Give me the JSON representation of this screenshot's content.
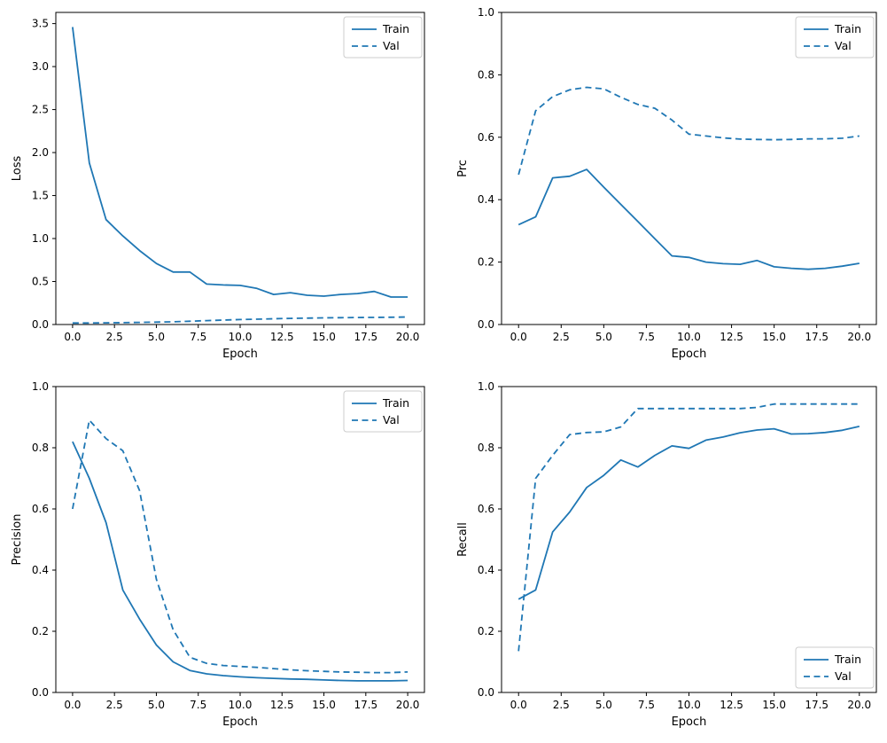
{
  "figure": {
    "background": "#ffffff",
    "accent_color": "#1f77b4",
    "text_color": "#000000",
    "legend_border_color": "#cccccc"
  },
  "chart_data": [
    {
      "type": "line",
      "name": "loss",
      "title": "",
      "xlabel": "Epoch",
      "ylabel": "Loss",
      "xlim": [
        -1,
        21
      ],
      "ylim": [
        0,
        3.63
      ],
      "grid": false,
      "xticks": [
        0,
        2.5,
        5,
        7.5,
        10,
        12.5,
        15,
        17.5,
        20
      ],
      "xtick_labels": [
        "0.0",
        "2.5",
        "5.0",
        "7.5",
        "10.0",
        "12.5",
        "15.0",
        "17.5",
        "20.0"
      ],
      "yticks": [
        0,
        0.5,
        1.0,
        1.5,
        2.0,
        2.5,
        3.0,
        3.5
      ],
      "ytick_labels": [
        "0.0",
        "0.5",
        "1.0",
        "1.5",
        "2.0",
        "2.5",
        "3.0",
        "3.5"
      ],
      "legend": {
        "position": "upper-right",
        "entries": [
          "Train",
          "Val"
        ]
      },
      "x": [
        0,
        1,
        2,
        3,
        4,
        5,
        6,
        7,
        8,
        9,
        10,
        11,
        12,
        13,
        14,
        15,
        16,
        17,
        18,
        19,
        20
      ],
      "series": [
        {
          "name": "Train",
          "style": "solid",
          "color": "#1f77b4",
          "values": [
            3.46,
            1.88,
            1.22,
            1.03,
            0.86,
            0.71,
            0.61,
            0.61,
            0.47,
            0.46,
            0.455,
            0.42,
            0.35,
            0.37,
            0.34,
            0.33,
            0.35,
            0.36,
            0.385,
            0.32,
            0.32
          ]
        },
        {
          "name": "Val",
          "style": "dashed",
          "color": "#1f77b4",
          "values": [
            0.018,
            0.018,
            0.02,
            0.022,
            0.025,
            0.028,
            0.032,
            0.038,
            0.045,
            0.052,
            0.058,
            0.062,
            0.067,
            0.071,
            0.074,
            0.077,
            0.079,
            0.081,
            0.083,
            0.085,
            0.088
          ]
        }
      ]
    },
    {
      "type": "line",
      "name": "prc",
      "title": "",
      "xlabel": "Epoch",
      "ylabel": "Prc",
      "xlim": [
        -1,
        21
      ],
      "ylim": [
        0,
        1.0
      ],
      "grid": false,
      "xticks": [
        0,
        2.5,
        5,
        7.5,
        10,
        12.5,
        15,
        17.5,
        20
      ],
      "xtick_labels": [
        "0.0",
        "2.5",
        "5.0",
        "7.5",
        "10.0",
        "12.5",
        "15.0",
        "17.5",
        "20.0"
      ],
      "yticks": [
        0,
        0.2,
        0.4,
        0.6,
        0.8,
        1.0
      ],
      "ytick_labels": [
        "0.0",
        "0.2",
        "0.4",
        "0.6",
        "0.8",
        "1.0"
      ],
      "legend": {
        "position": "upper-right",
        "entries": [
          "Train",
          "Val"
        ]
      },
      "x": [
        0,
        1,
        2,
        3,
        4,
        5,
        6,
        7,
        8,
        9,
        10,
        11,
        12,
        13,
        14,
        15,
        16,
        17,
        18,
        19,
        20
      ],
      "series": [
        {
          "name": "Train",
          "style": "solid",
          "color": "#1f77b4",
          "values": [
            0.32,
            0.345,
            0.47,
            0.475,
            0.497,
            0.44,
            0.385,
            0.33,
            0.275,
            0.22,
            0.215,
            0.2,
            0.195,
            0.193,
            0.205,
            0.185,
            0.18,
            0.177,
            0.18,
            0.187,
            0.196
          ]
        },
        {
          "name": "Val",
          "style": "dashed",
          "color": "#1f77b4",
          "values": [
            0.48,
            0.685,
            0.73,
            0.752,
            0.76,
            0.755,
            0.728,
            0.705,
            0.693,
            0.655,
            0.61,
            0.604,
            0.598,
            0.594,
            0.593,
            0.592,
            0.593,
            0.595,
            0.595,
            0.597,
            0.604
          ]
        }
      ]
    },
    {
      "type": "line",
      "name": "precision",
      "title": "",
      "xlabel": "Epoch",
      "ylabel": "Precision",
      "xlim": [
        -1,
        21
      ],
      "ylim": [
        0,
        1.0
      ],
      "grid": false,
      "xticks": [
        0,
        2.5,
        5,
        7.5,
        10,
        12.5,
        15,
        17.5,
        20
      ],
      "xtick_labels": [
        "0.0",
        "2.5",
        "5.0",
        "7.5",
        "10.0",
        "12.5",
        "15.0",
        "17.5",
        "20.0"
      ],
      "yticks": [
        0,
        0.2,
        0.4,
        0.6,
        0.8,
        1.0
      ],
      "ytick_labels": [
        "0.0",
        "0.2",
        "0.4",
        "0.6",
        "0.8",
        "1.0"
      ],
      "legend": {
        "position": "upper-right",
        "entries": [
          "Train",
          "Val"
        ]
      },
      "x": [
        0,
        1,
        2,
        3,
        4,
        5,
        6,
        7,
        8,
        9,
        10,
        11,
        12,
        13,
        14,
        15,
        16,
        17,
        18,
        19,
        20
      ],
      "series": [
        {
          "name": "Train",
          "style": "solid",
          "color": "#1f77b4",
          "values": [
            0.82,
            0.7,
            0.555,
            0.335,
            0.24,
            0.155,
            0.1,
            0.072,
            0.061,
            0.055,
            0.051,
            0.048,
            0.046,
            0.044,
            0.043,
            0.041,
            0.039,
            0.038,
            0.038,
            0.038,
            0.039
          ]
        },
        {
          "name": "Val",
          "style": "dashed",
          "color": "#1f77b4",
          "values": [
            0.6,
            0.89,
            0.83,
            0.79,
            0.66,
            0.37,
            0.205,
            0.115,
            0.095,
            0.088,
            0.085,
            0.082,
            0.078,
            0.074,
            0.071,
            0.069,
            0.067,
            0.066,
            0.065,
            0.065,
            0.067
          ]
        }
      ]
    },
    {
      "type": "line",
      "name": "recall",
      "title": "",
      "xlabel": "Epoch",
      "ylabel": "Recall",
      "xlim": [
        -1,
        21
      ],
      "ylim": [
        0,
        1.0
      ],
      "grid": false,
      "xticks": [
        0,
        2.5,
        5,
        7.5,
        10,
        12.5,
        15,
        17.5,
        20
      ],
      "xtick_labels": [
        "0.0",
        "2.5",
        "5.0",
        "7.5",
        "10.0",
        "12.5",
        "15.0",
        "17.5",
        "20.0"
      ],
      "yticks": [
        0,
        0.2,
        0.4,
        0.6,
        0.8,
        1.0
      ],
      "ytick_labels": [
        "0.0",
        "0.2",
        "0.4",
        "0.6",
        "0.8",
        "1.0"
      ],
      "legend": {
        "position": "lower-right",
        "entries": [
          "Train",
          "Val"
        ]
      },
      "x": [
        0,
        1,
        2,
        3,
        4,
        5,
        6,
        7,
        8,
        9,
        10,
        11,
        12,
        13,
        14,
        15,
        16,
        17,
        18,
        19,
        20
      ],
      "series": [
        {
          "name": "Train",
          "style": "solid",
          "color": "#1f77b4",
          "values": [
            0.305,
            0.335,
            0.525,
            0.59,
            0.67,
            0.71,
            0.76,
            0.737,
            0.775,
            0.806,
            0.798,
            0.825,
            0.835,
            0.849,
            0.858,
            0.862,
            0.845,
            0.846,
            0.85,
            0.857,
            0.87
          ]
        },
        {
          "name": "Val",
          "style": "dashed",
          "color": "#1f77b4",
          "values": [
            0.135,
            0.7,
            0.775,
            0.843,
            0.85,
            0.852,
            0.868,
            0.928,
            0.928,
            0.928,
            0.928,
            0.928,
            0.928,
            0.928,
            0.932,
            0.943,
            0.943,
            0.943,
            0.943,
            0.943,
            0.943
          ]
        }
      ]
    }
  ]
}
